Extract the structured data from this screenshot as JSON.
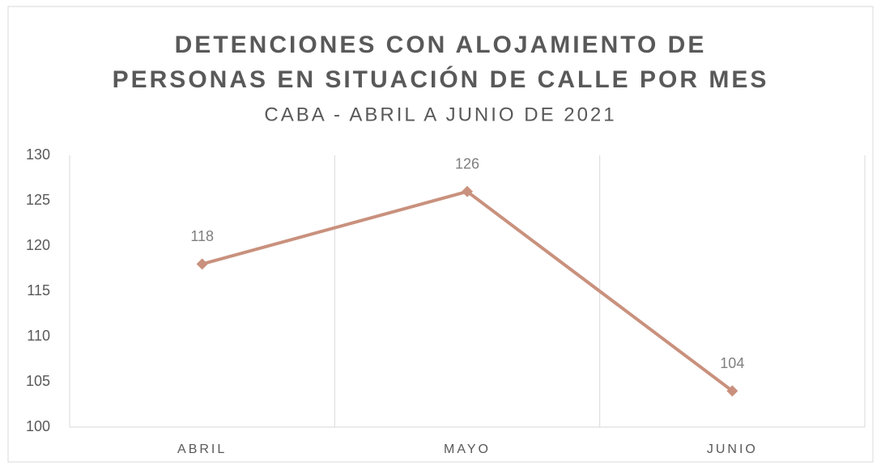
{
  "chart_data": {
    "type": "line",
    "title": [
      "DETENCIONES CON ALOJAMIENTO DE",
      "PERSONAS EN SITUACIÓN DE CALLE POR MES"
    ],
    "subtitle": "CABA - ABRIL A JUNIO DE 2021",
    "categories": [
      "ABRIL",
      "MAYO",
      "JUNIO"
    ],
    "values": [
      118,
      126,
      104
    ],
    "color": "#c9917d",
    "ylim": [
      100,
      130
    ],
    "yticks": [
      100,
      105,
      110,
      115,
      120,
      125,
      130
    ],
    "grid": false
  }
}
